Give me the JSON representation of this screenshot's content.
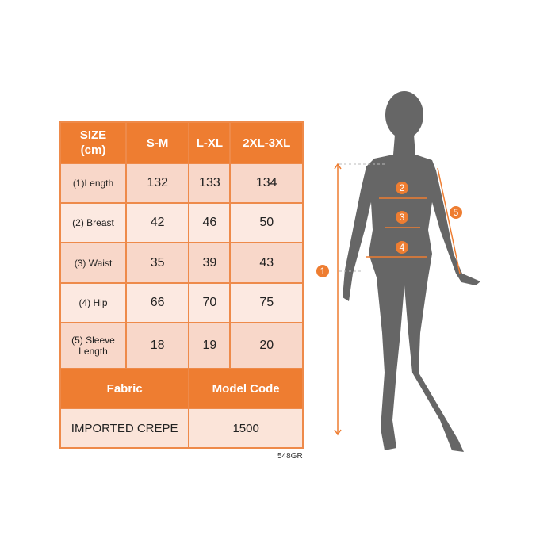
{
  "table": {
    "header": [
      "SIZE\n(cm)",
      "S-M",
      "L-XL",
      "2XL-3XL"
    ],
    "rows": [
      {
        "label": "(1)Length",
        "values": [
          "132",
          "133",
          "134"
        ]
      },
      {
        "label": "(2) Breast",
        "values": [
          "42",
          "46",
          "50"
        ]
      },
      {
        "label": "(3) Waist",
        "values": [
          "35",
          "39",
          "43"
        ]
      },
      {
        "label": "(4) Hip",
        "values": [
          "66",
          "70",
          "75"
        ]
      },
      {
        "label": "(5) Sleeve Length",
        "values": [
          "18",
          "19",
          "20"
        ]
      }
    ],
    "fabric_label": "Fabric",
    "model_code_label": "Model Code",
    "fabric_value": "IMPORTED CREPE",
    "model_code_value": "1500"
  },
  "product_code": "548GR",
  "figure": {
    "markers": [
      "1",
      "2",
      "3",
      "4",
      "5"
    ],
    "accent": "#ee7d31",
    "silhouette": "#666666"
  }
}
